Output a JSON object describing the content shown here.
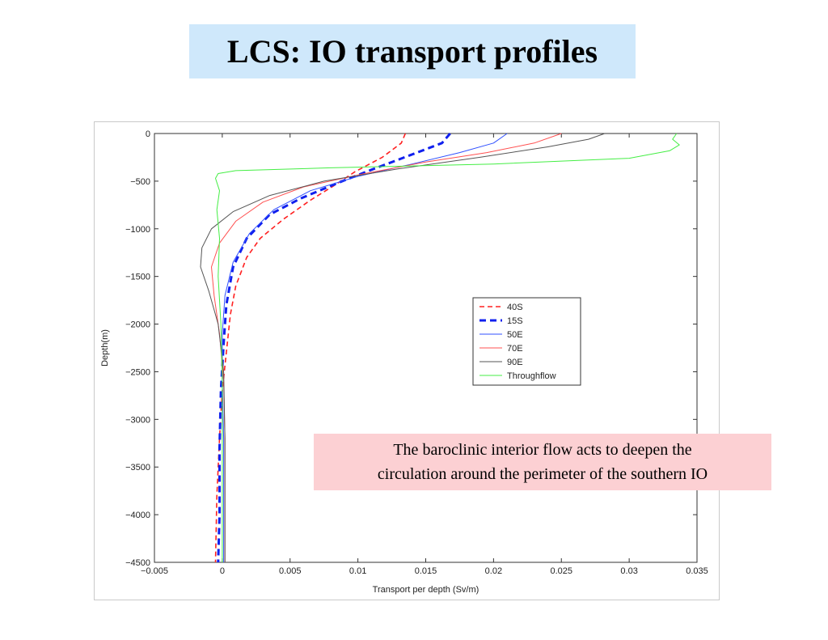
{
  "slide": {
    "title": "LCS: IO transport profiles",
    "note_line1": "The baroclinic interior flow acts to deepen the",
    "note_line2": "circulation around the perimeter of the southern IO"
  },
  "chart_data": {
    "type": "line",
    "xlabel": "Transport per depth (Sv/m)",
    "ylabel": "Depth(m)",
    "xlim": [
      -0.005,
      0.035
    ],
    "ylim": [
      -4500,
      0
    ],
    "xticks": [
      -0.005,
      0,
      0.005,
      0.01,
      0.015,
      0.02,
      0.025,
      0.03,
      0.035
    ],
    "xtick_labels": [
      "−0.005",
      "0",
      "0.005",
      "0.01",
      "0.015",
      "0.02",
      "0.025",
      "0.03",
      "0.035"
    ],
    "yticks": [
      0,
      -500,
      -1000,
      -1500,
      -2000,
      -2500,
      -3000,
      -3500,
      -4000,
      -4500
    ],
    "ytick_labels": [
      "0",
      "−500",
      "−1000",
      "−1500",
      "−2000",
      "−2500",
      "−3000",
      "−3500",
      "−4000",
      "−4500"
    ],
    "grid": false,
    "legend_position": "center-right",
    "series": [
      {
        "name": "40S",
        "color": "#ff2020",
        "dash": "dashed",
        "width": 1.6,
        "points": [
          [
            0.0135,
            0
          ],
          [
            0.0132,
            -100
          ],
          [
            0.0118,
            -250
          ],
          [
            0.0098,
            -400
          ],
          [
            0.0082,
            -550
          ],
          [
            0.0065,
            -700
          ],
          [
            0.0045,
            -900
          ],
          [
            0.0028,
            -1100
          ],
          [
            0.0018,
            -1300
          ],
          [
            0.001,
            -1600
          ],
          [
            0.0006,
            -1900
          ],
          [
            0.0003,
            -2300
          ],
          [
            0.0,
            -2700
          ],
          [
            -0.0002,
            -3200
          ],
          [
            -0.0004,
            -3800
          ],
          [
            -0.0005,
            -4500
          ]
        ]
      },
      {
        "name": "15S",
        "color": "#1020ee",
        "dash": "dashed-bold",
        "width": 3,
        "points": [
          [
            0.0168,
            0
          ],
          [
            0.0162,
            -100
          ],
          [
            0.014,
            -220
          ],
          [
            0.011,
            -380
          ],
          [
            0.0085,
            -520
          ],
          [
            0.0058,
            -680
          ],
          [
            0.0035,
            -850
          ],
          [
            0.0018,
            -1100
          ],
          [
            0.0008,
            -1400
          ],
          [
            0.0003,
            -1800
          ],
          [
            0.0001,
            -2200
          ],
          [
            -0.0001,
            -2700
          ],
          [
            -0.0002,
            -3300
          ],
          [
            -0.0002,
            -4000
          ],
          [
            -0.0003,
            -4500
          ]
        ]
      },
      {
        "name": "50E",
        "color": "#3050ff",
        "dash": "solid",
        "width": 1,
        "points": [
          [
            0.021,
            0
          ],
          [
            0.02,
            -100
          ],
          [
            0.0175,
            -200
          ],
          [
            0.014,
            -320
          ],
          [
            0.01,
            -450
          ],
          [
            0.0065,
            -600
          ],
          [
            0.0038,
            -800
          ],
          [
            0.002,
            -1050
          ],
          [
            0.0008,
            -1350
          ],
          [
            0.0002,
            -1700
          ],
          [
            0.0,
            -2100
          ],
          [
            0.0,
            -2600
          ],
          [
            0.0001,
            -3200
          ],
          [
            0.0001,
            -4500
          ]
        ]
      },
      {
        "name": "70E",
        "color": "#ff5050",
        "dash": "solid",
        "width": 1,
        "points": [
          [
            0.025,
            0
          ],
          [
            0.023,
            -100
          ],
          [
            0.0195,
            -200
          ],
          [
            0.015,
            -300
          ],
          [
            0.0105,
            -420
          ],
          [
            0.006,
            -560
          ],
          [
            0.003,
            -720
          ],
          [
            0.001,
            -920
          ],
          [
            -0.0002,
            -1150
          ],
          [
            -0.0008,
            -1400
          ],
          [
            -0.0006,
            -1700
          ],
          [
            -0.0002,
            -2100
          ],
          [
            0.0001,
            -2600
          ],
          [
            0.0002,
            -3200
          ],
          [
            0.0002,
            -4500
          ]
        ]
      },
      {
        "name": "90E",
        "color": "#555555",
        "dash": "solid",
        "width": 1,
        "points": [
          [
            0.0282,
            0
          ],
          [
            0.027,
            -60
          ],
          [
            0.024,
            -140
          ],
          [
            0.019,
            -250
          ],
          [
            0.013,
            -370
          ],
          [
            0.0075,
            -500
          ],
          [
            0.0035,
            -650
          ],
          [
            0.0008,
            -820
          ],
          [
            -0.0008,
            -1000
          ],
          [
            -0.0015,
            -1200
          ],
          [
            -0.0016,
            -1400
          ],
          [
            -0.001,
            -1650
          ],
          [
            -0.0003,
            -2000
          ],
          [
            0.0001,
            -2500
          ],
          [
            0.0002,
            -3200
          ],
          [
            0.0002,
            -4500
          ]
        ]
      },
      {
        "name": "Throughflow",
        "color": "#44ee44",
        "dash": "solid",
        "width": 1,
        "points": [
          [
            0.0335,
            0
          ],
          [
            0.0332,
            -60
          ],
          [
            0.0337,
            -120
          ],
          [
            0.033,
            -180
          ],
          [
            0.03,
            -260
          ],
          [
            0.02,
            -320
          ],
          [
            0.008,
            -360
          ],
          [
            0.001,
            -390
          ],
          [
            -0.0003,
            -420
          ],
          [
            -0.0005,
            -470
          ],
          [
            -0.0002,
            -600
          ],
          [
            -0.0004,
            -800
          ],
          [
            -0.0002,
            -1100
          ],
          [
            -0.0003,
            -1500
          ],
          [
            -0.0001,
            -2000
          ],
          [
            0.0,
            -2600
          ],
          [
            0.0,
            -4500
          ]
        ]
      }
    ]
  }
}
